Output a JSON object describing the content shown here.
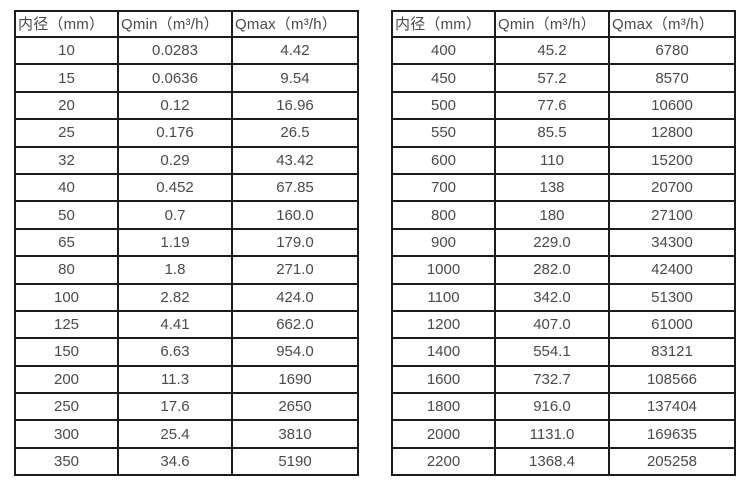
{
  "page": {
    "background_color": "#ffffff",
    "border_color": "#1c1c1c",
    "text_color": "#4a4a4a"
  },
  "tables": [
    {
      "title": "flow-table-small-diameters",
      "headers": [
        "内径（mm）",
        "Qmin（m³/h）",
        "Qmax（m³/h）"
      ],
      "rows": [
        [
          "10",
          "0.0283",
          "4.42"
        ],
        [
          "15",
          "0.0636",
          "9.54"
        ],
        [
          "20",
          "0.12",
          "16.96"
        ],
        [
          "25",
          "0.176",
          "26.5"
        ],
        [
          "32",
          "0.29",
          "43.42"
        ],
        [
          "40",
          "0.452",
          "67.85"
        ],
        [
          "50",
          "0.7",
          "160.0"
        ],
        [
          "65",
          "1.19",
          "179.0"
        ],
        [
          "80",
          "1.8",
          "271.0"
        ],
        [
          "100",
          "2.82",
          "424.0"
        ],
        [
          "125",
          "4.41",
          "662.0"
        ],
        [
          "150",
          "6.63",
          "954.0"
        ],
        [
          "200",
          "11.3",
          "1690"
        ],
        [
          "250",
          "17.6",
          "2650"
        ],
        [
          "300",
          "25.4",
          "3810"
        ],
        [
          "350",
          "34.6",
          "5190"
        ]
      ]
    },
    {
      "title": "flow-table-large-diameters",
      "headers": [
        "内径（mm）",
        "Qmin（m³/h）",
        "Qmax（m³/h）"
      ],
      "rows": [
        [
          "400",
          "45.2",
          "6780"
        ],
        [
          "450",
          "57.2",
          "8570"
        ],
        [
          "500",
          "77.6",
          "10600"
        ],
        [
          "550",
          "85.5",
          "12800"
        ],
        [
          "600",
          "110",
          "15200"
        ],
        [
          "700",
          "138",
          "20700"
        ],
        [
          "800",
          "180",
          "27100"
        ],
        [
          "900",
          "229.0",
          "34300"
        ],
        [
          "1000",
          "282.0",
          "42400"
        ],
        [
          "1100",
          "342.0",
          "51300"
        ],
        [
          "1200",
          "407.0",
          "61000"
        ],
        [
          "1400",
          "554.1",
          "83121"
        ],
        [
          "1600",
          "732.7",
          "108566"
        ],
        [
          "1800",
          "916.0",
          "137404"
        ],
        [
          "2000",
          "1131.0",
          "169635"
        ],
        [
          "2200",
          "1368.4",
          "205258"
        ]
      ]
    }
  ]
}
